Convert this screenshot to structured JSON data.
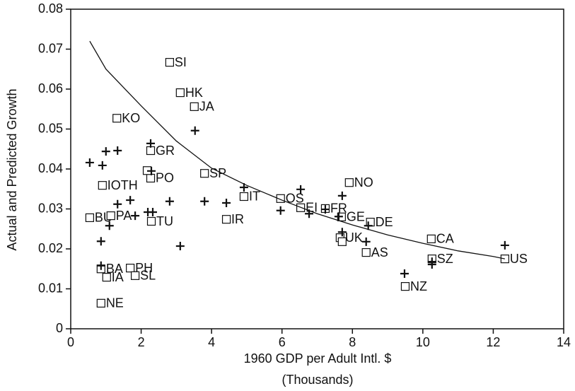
{
  "chart_data": {
    "type": "scatter",
    "xlabel": [
      "1960 GDP per Adult Intl. $",
      "(Thousands)"
    ],
    "ylabel": "Actual and Predicted Growth",
    "xlim": [
      0,
      14
    ],
    "xticks": [
      0,
      2,
      4,
      6,
      8,
      10,
      12,
      14
    ],
    "ylim": [
      0,
      0.08
    ],
    "yticks": [
      0,
      0.01,
      0.02,
      0.03,
      0.04,
      0.05,
      0.06,
      0.07,
      0.08
    ],
    "series": [
      {
        "marker": "square",
        "color": "#111111",
        "labels": [
          "SI",
          "HK",
          "JA",
          "KO",
          "GR",
          "SP",
          "PO",
          "IOTH",
          "IT",
          "OS",
          "NO",
          "EI",
          "FR",
          "GE",
          "DE",
          "BU",
          "PA",
          "TU",
          "IR",
          "UK",
          "AS",
          "CA",
          "SZ",
          "US",
          "NZ",
          "BA",
          "IA",
          "PH",
          "SL",
          "NE",
          null,
          null
        ],
        "x": [
          2.81,
          3.11,
          3.51,
          1.31,
          2.27,
          3.8,
          2.27,
          0.9,
          4.92,
          5.96,
          7.91,
          6.53,
          7.23,
          7.69,
          8.51,
          0.54,
          1.14,
          2.29,
          4.42,
          7.65,
          8.39,
          10.24,
          10.26,
          12.33,
          9.5,
          0.86,
          1.02,
          1.69,
          1.83,
          0.86,
          2.17,
          7.71
        ],
        "values": [
          0.0667,
          0.0591,
          0.0556,
          0.0527,
          0.0446,
          0.0389,
          0.0377,
          0.0359,
          0.0331,
          0.0326,
          0.0366,
          0.0303,
          0.0301,
          0.028,
          0.0267,
          0.0278,
          0.0283,
          0.0269,
          0.0274,
          0.0228,
          0.0191,
          0.0225,
          0.0175,
          0.0175,
          0.0106,
          0.015,
          0.0129,
          0.0152,
          0.0133,
          0.0064,
          0.0396,
          0.0218
        ]
      },
      {
        "marker": "plus",
        "color": "#111111",
        "x": [
          0.54,
          0.9,
          1.0,
          1.33,
          2.27,
          3.53,
          2.29,
          1.33,
          1.69,
          1.1,
          0.86,
          1.83,
          2.19,
          2.33,
          2.81,
          3.8,
          3.11,
          4.42,
          4.92,
          5.96,
          6.53,
          6.77,
          7.23,
          7.61,
          7.71,
          7.71,
          8.45,
          8.39,
          9.48,
          10.26,
          10.26,
          12.33,
          0.86
        ],
        "values": [
          0.0416,
          0.0409,
          0.0444,
          0.0446,
          0.0464,
          0.0496,
          0.0395,
          0.0312,
          0.0322,
          0.0258,
          0.0219,
          0.0283,
          0.0292,
          0.0292,
          0.0319,
          0.0319,
          0.0207,
          0.0315,
          0.0354,
          0.0296,
          0.0349,
          0.0288,
          0.0299,
          0.0281,
          0.0333,
          0.0242,
          0.0258,
          0.0218,
          0.0138,
          0.0168,
          0.0161,
          0.0209,
          0.0158
        ]
      },
      {
        "marker": "line",
        "color": "#111111",
        "x": [
          0.54,
          1,
          2,
          3,
          4,
          5,
          6,
          7,
          8,
          9,
          10,
          11,
          12,
          12.33
        ],
        "values": [
          0.072,
          0.065,
          0.0558,
          0.047,
          0.0402,
          0.0359,
          0.0322,
          0.0288,
          0.026,
          0.0235,
          0.0214,
          0.0195,
          0.0181,
          0.0175
        ]
      }
    ]
  }
}
